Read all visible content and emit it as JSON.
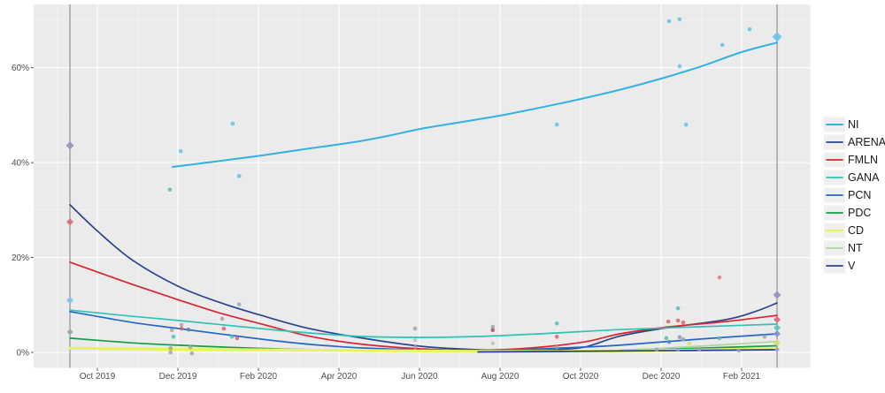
{
  "layout": {
    "panel_bg": "#EBEBEB",
    "grid_major": "#FFFFFF",
    "grid_minor": "#F4F4F4",
    "boundary_line": "#9E9E9E",
    "axis_text_color": "#4D4D4D",
    "tick_color": "#333333",
    "legend_key_bg": "#EFEFEF",
    "legend_text_color": "#1A1A1A"
  },
  "axes": {
    "y_ticks": [
      {
        "label": "0%",
        "value": 0
      },
      {
        "label": "20%",
        "value": 20
      },
      {
        "label": "40%",
        "value": 40
      },
      {
        "label": "60%",
        "value": 60
      }
    ],
    "x_ticks": [
      {
        "label": "Oct 2019",
        "month": 0
      },
      {
        "label": "Dec 2019",
        "month": 2
      },
      {
        "label": "Feb 2020",
        "month": 4
      },
      {
        "label": "Apr 2020",
        "month": 6
      },
      {
        "label": "Jun 2020",
        "month": 8
      },
      {
        "label": "Aug 2020",
        "month": 10
      },
      {
        "label": "Oct 2020",
        "month": 12
      },
      {
        "label": "Dec 2020",
        "month": 14
      },
      {
        "label": "Feb 2021",
        "month": 16
      }
    ]
  },
  "chart_data": {
    "type": "scatter",
    "title": "",
    "xlabel": "",
    "ylabel": "",
    "x_unit": "months since Oct 2019",
    "y_unit": "percent",
    "xlim": [
      -1.58,
      17.7
    ],
    "ylim": [
      -3.3,
      76.6
    ],
    "grid": "on",
    "legend_position": "right",
    "boundary_lines_x": [
      -0.68,
      16.88
    ],
    "series": [
      {
        "name": "NI",
        "color": "#31B2E2",
        "width": 2.0,
        "trend": [
          [
            1.87,
            39.1
          ],
          [
            3.0,
            40.3
          ],
          [
            4.07,
            41.5
          ],
          [
            5.2,
            42.9
          ],
          [
            6.37,
            44.3
          ],
          [
            7.2,
            45.6
          ],
          [
            8.02,
            47.1
          ],
          [
            9.0,
            48.5
          ],
          [
            10.0,
            49.9
          ],
          [
            11.0,
            51.6
          ],
          [
            12.0,
            53.4
          ],
          [
            13.0,
            55.4
          ],
          [
            14.0,
            57.7
          ],
          [
            15.0,
            60.3
          ],
          [
            16.0,
            63.3
          ],
          [
            16.88,
            65.3
          ]
        ]
      },
      {
        "name": "ARENA",
        "color": "#2B4590",
        "width": 1.7,
        "trend": [
          [
            -0.68,
            31.1
          ],
          [
            0.0,
            25.6
          ],
          [
            0.88,
            19.4
          ],
          [
            2.04,
            13.8
          ],
          [
            3.08,
            10.4
          ],
          [
            4.07,
            7.8
          ],
          [
            5.27,
            5.0
          ],
          [
            6.59,
            3.0
          ],
          [
            8.02,
            1.3
          ],
          [
            9.45,
            0.56
          ],
          [
            10.77,
            0.4
          ],
          [
            11.4,
            0.6
          ],
          [
            12.09,
            1.1
          ],
          [
            12.97,
            3.4
          ],
          [
            14.0,
            5.0
          ],
          [
            15.6,
            6.9
          ],
          [
            16.3,
            8.5
          ],
          [
            16.88,
            10.4
          ]
        ]
      },
      {
        "name": "FMLN",
        "color": "#DC2430",
        "width": 1.7,
        "trend": [
          [
            -0.68,
            19.0
          ],
          [
            0.88,
            14.3
          ],
          [
            2.04,
            11.0
          ],
          [
            3.08,
            8.2
          ],
          [
            4.07,
            6.0
          ],
          [
            5.27,
            3.4
          ],
          [
            6.59,
            1.7
          ],
          [
            8.02,
            0.74
          ],
          [
            9.45,
            0.47
          ],
          [
            10.77,
            0.93
          ],
          [
            12.09,
            2.2
          ],
          [
            12.97,
            3.9
          ],
          [
            14.0,
            5.2
          ],
          [
            15.6,
            6.5
          ],
          [
            16.88,
            7.8
          ]
        ]
      },
      {
        "name": "GANA",
        "color": "#2EC3B2",
        "width": 1.7,
        "trend": [
          [
            -0.68,
            8.9
          ],
          [
            0.88,
            7.6
          ],
          [
            2.04,
            6.7
          ],
          [
            4.07,
            5.0
          ],
          [
            5.27,
            4.1
          ],
          [
            6.59,
            3.35
          ],
          [
            8.02,
            3.16
          ],
          [
            9.45,
            3.35
          ],
          [
            11.4,
            4.1
          ],
          [
            12.97,
            4.8
          ],
          [
            14.95,
            5.4
          ],
          [
            16.88,
            5.95
          ]
        ]
      },
      {
        "name": "PCN",
        "color": "#2268C8",
        "width": 1.7,
        "trend": [
          [
            -0.68,
            8.6
          ],
          [
            0.88,
            6.3
          ],
          [
            2.04,
            5.0
          ],
          [
            4.07,
            2.8
          ],
          [
            5.27,
            1.7
          ],
          [
            6.59,
            0.93
          ],
          [
            8.02,
            0.56
          ],
          [
            10.0,
            0.47
          ],
          [
            12.0,
            1.1
          ],
          [
            12.97,
            1.5
          ],
          [
            14.95,
            2.8
          ],
          [
            16.88,
            3.9
          ]
        ]
      },
      {
        "name": "PDC",
        "color": "#159C4A",
        "width": 1.7,
        "trend": [
          [
            -0.68,
            3.0
          ],
          [
            0.88,
            2.0
          ],
          [
            2.04,
            1.5
          ],
          [
            4.07,
            0.84
          ],
          [
            6.59,
            0.37
          ],
          [
            10.0,
            0.2
          ],
          [
            12.97,
            0.4
          ],
          [
            14.95,
            0.9
          ],
          [
            16.88,
            1.4
          ]
        ]
      },
      {
        "name": "CD",
        "color": "#E7F35F",
        "width": 3.2,
        "trend": [
          [
            -0.68,
            0.9
          ],
          [
            2.04,
            0.65
          ],
          [
            6.59,
            0.4
          ],
          [
            10.0,
            0.2
          ],
          [
            12.97,
            0.3
          ],
          [
            16.88,
            0.75
          ]
        ]
      },
      {
        "name": "NT",
        "color": "#AED59C",
        "width": 1.7,
        "trend": [
          [
            12.97,
            0.45
          ],
          [
            14.95,
            1.3
          ],
          [
            16.88,
            2.3
          ]
        ]
      },
      {
        "name": "V",
        "color": "#2D3E94",
        "width": 1.7,
        "trend": [
          [
            9.45,
            0.1
          ],
          [
            12.97,
            0.3
          ],
          [
            16.88,
            0.55
          ]
        ]
      }
    ],
    "poll_points": [
      {
        "x": 2.07,
        "y": 42.4,
        "color": "#5BBDE8"
      },
      {
        "x": 1.8,
        "y": 34.3,
        "color": "#46C0B2"
      },
      {
        "x": 3.36,
        "y": 48.2,
        "color": "#5BBDE8"
      },
      {
        "x": 3.52,
        "y": 37.2,
        "color": "#5BBDE8"
      },
      {
        "x": 3.52,
        "y": 10.1,
        "color": "#8CA6C8"
      },
      {
        "x": 2.09,
        "y": 5.8,
        "color": "#9CA0A8"
      },
      {
        "x": 2.09,
        "y": 5.0,
        "color": "#DE5A66"
      },
      {
        "x": 1.85,
        "y": 4.7,
        "color": "#9CA0A8"
      },
      {
        "x": 1.89,
        "y": 3.3,
        "color": "#46C0B2"
      },
      {
        "x": 1.82,
        "y": 0.9,
        "color": "#9CA0A8"
      },
      {
        "x": 1.82,
        "y": 0.0,
        "color": "#9CA0A8"
      },
      {
        "x": 3.1,
        "y": 7.1,
        "color": "#9CA0A8"
      },
      {
        "x": 3.14,
        "y": 5.0,
        "color": "#DE5A66"
      },
      {
        "x": 2.26,
        "y": 4.8,
        "color": "#5C7FC4"
      },
      {
        "x": 2.31,
        "y": 1.1,
        "color": "#9CA0A8"
      },
      {
        "x": 2.35,
        "y": -0.2,
        "color": "#9CA0A8"
      },
      {
        "x": 3.34,
        "y": 3.3,
        "color": "#46C0B2"
      },
      {
        "x": 3.47,
        "y": 3.0,
        "color": "#DE5A66"
      },
      {
        "x": 7.89,
        "y": 5.0,
        "color": "#9CA0A8"
      },
      {
        "x": 7.89,
        "y": 2.6,
        "color": "#B8BCC0"
      },
      {
        "x": 7.89,
        "y": 1.1,
        "color": "#9CA0A8"
      },
      {
        "x": 9.82,
        "y": 5.4,
        "color": "#9CA0A8"
      },
      {
        "x": 9.82,
        "y": 4.7,
        "color": "#A04858"
      },
      {
        "x": 9.82,
        "y": 1.9,
        "color": "#B8BCC0"
      },
      {
        "x": 11.41,
        "y": 48.0,
        "color": "#5BBDE8"
      },
      {
        "x": 11.41,
        "y": 6.1,
        "color": "#46C0B2"
      },
      {
        "x": 11.41,
        "y": 3.3,
        "color": "#DE5A66"
      },
      {
        "x": 11.41,
        "y": 1.1,
        "color": "#9CA0A8"
      },
      {
        "x": 14.2,
        "y": 69.8,
        "color": "#5BBDE8"
      },
      {
        "x": 14.46,
        "y": 70.2,
        "color": "#5BBDE8"
      },
      {
        "x": 14.46,
        "y": 60.3,
        "color": "#5BBDE8"
      },
      {
        "x": 14.62,
        "y": 48.0,
        "color": "#5BBDE8"
      },
      {
        "x": 14.42,
        "y": 9.3,
        "color": "#46C0B2"
      },
      {
        "x": 14.18,
        "y": 6.5,
        "color": "#DE5A66"
      },
      {
        "x": 14.42,
        "y": 6.7,
        "color": "#DE5A66"
      },
      {
        "x": 14.55,
        "y": 6.3,
        "color": "#DE5A66"
      },
      {
        "x": 14.46,
        "y": 3.2,
        "color": "#8F8FB8"
      },
      {
        "x": 14.55,
        "y": 2.8,
        "color": "#9CA0A8"
      },
      {
        "x": 14.13,
        "y": 3.0,
        "color": "#46C0B2"
      },
      {
        "x": 14.2,
        "y": 2.2,
        "color": "#5C7FC4"
      },
      {
        "x": 13.89,
        "y": 0.56,
        "color": "#9CA0A8"
      },
      {
        "x": 14.42,
        "y": 0.56,
        "color": "#9CA0A8"
      },
      {
        "x": 14.95,
        "y": 0.56,
        "color": "#9CA0A8"
      },
      {
        "x": 14.7,
        "y": 1.9,
        "color": "#CFDE6A"
      },
      {
        "x": 15.45,
        "y": 15.8,
        "color": "#E0707E"
      },
      {
        "x": 15.52,
        "y": 64.8,
        "color": "#5BBDE8"
      },
      {
        "x": 16.2,
        "y": 68.1,
        "color": "#5BBDE8"
      },
      {
        "x": 15.45,
        "y": 3.0,
        "color": "#46C0B2"
      },
      {
        "x": 15.93,
        "y": 0.37,
        "color": "#9CA0A8"
      },
      {
        "x": 16.57,
        "y": 3.3,
        "color": "#9CA0A8"
      }
    ],
    "result_diamonds": [
      {
        "x": -0.68,
        "y": 43.6,
        "color": "#9391BC",
        "size": 9
      },
      {
        "x": -0.68,
        "y": 27.5,
        "color": "#E0667A",
        "size": 8
      },
      {
        "x": -0.68,
        "y": 11.0,
        "color": "#7FC4E8",
        "size": 8
      },
      {
        "x": -0.68,
        "y": 4.3,
        "color": "#9BA3A8",
        "size": 7
      },
      {
        "x": 16.88,
        "y": 66.5,
        "color": "#66C4EC",
        "size": 11
      },
      {
        "x": 16.88,
        "y": 12.1,
        "color": "#9391BC",
        "size": 9
      },
      {
        "x": 16.88,
        "y": 6.9,
        "color": "#E0667A",
        "size": 8
      },
      {
        "x": 16.88,
        "y": 5.2,
        "color": "#55C8BC",
        "size": 8
      },
      {
        "x": 16.88,
        "y": 3.9,
        "color": "#8C8FD0",
        "size": 8
      },
      {
        "x": 16.88,
        "y": 2.0,
        "color": "#CFE06E",
        "size": 8
      },
      {
        "x": 16.88,
        "y": 0.6,
        "color": "#9FA3C8",
        "size": 6
      }
    ]
  },
  "legend": {
    "items": [
      {
        "label": "NI"
      },
      {
        "label": "ARENA"
      },
      {
        "label": "FMLN"
      },
      {
        "label": "GANA"
      },
      {
        "label": "PCN"
      },
      {
        "label": "PDC"
      },
      {
        "label": "CD"
      },
      {
        "label": "NT"
      },
      {
        "label": "V"
      }
    ]
  }
}
